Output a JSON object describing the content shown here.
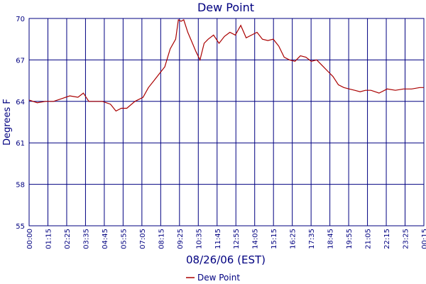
{
  "chart_data": {
    "type": "line",
    "title": "Dew Point",
    "xlabel": "08/26/06 (EST)",
    "ylabel": "Degrees F",
    "ylim": [
      55,
      70
    ],
    "yticks": [
      55,
      58,
      61,
      64,
      67,
      70
    ],
    "xticks": [
      "00:00",
      "01:15",
      "02:25",
      "03:35",
      "04:45",
      "05:55",
      "07:05",
      "08:15",
      "09:25",
      "10:35",
      "11:45",
      "12:55",
      "14:05",
      "15:15",
      "16:25",
      "17:35",
      "18:45",
      "19:55",
      "21:05",
      "22:15",
      "23:25",
      "00:15"
    ],
    "grid": true,
    "legend": {
      "position": "bottom",
      "entries": [
        "Dew Point"
      ]
    },
    "series": [
      {
        "name": "Dew Point",
        "color": "#aa0000",
        "x": [
          "00:00",
          "00:30",
          "01:00",
          "01:30",
          "02:00",
          "02:30",
          "03:00",
          "03:20",
          "03:40",
          "04:00",
          "04:30",
          "05:00",
          "05:20",
          "05:40",
          "06:00",
          "06:30",
          "07:00",
          "07:20",
          "07:40",
          "08:00",
          "08:20",
          "08:40",
          "09:00",
          "09:10",
          "09:20",
          "09:30",
          "09:45",
          "10:00",
          "10:15",
          "10:30",
          "10:45",
          "11:00",
          "11:20",
          "11:40",
          "12:00",
          "12:20",
          "12:40",
          "13:00",
          "13:20",
          "13:40",
          "14:00",
          "14:20",
          "14:40",
          "15:00",
          "15:20",
          "15:40",
          "16:00",
          "16:20",
          "16:40",
          "17:00",
          "17:20",
          "17:40",
          "18:00",
          "18:20",
          "18:40",
          "19:00",
          "19:20",
          "19:40",
          "20:00",
          "20:20",
          "20:40",
          "21:00",
          "21:30",
          "22:00",
          "22:30",
          "23:00",
          "23:30",
          "00:00",
          "00:15"
        ],
        "values": [
          64.1,
          63.9,
          64.0,
          64.0,
          64.2,
          64.4,
          64.3,
          64.6,
          64.0,
          64.0,
          64.0,
          63.8,
          63.3,
          63.5,
          63.5,
          64.0,
          64.3,
          65.0,
          65.5,
          66.0,
          66.5,
          67.8,
          68.5,
          69.9,
          69.8,
          69.9,
          69.0,
          68.3,
          67.6,
          67.0,
          68.2,
          68.5,
          68.8,
          68.2,
          68.7,
          69.0,
          68.8,
          69.5,
          68.6,
          68.8,
          69.0,
          68.5,
          68.4,
          68.5,
          68.0,
          67.2,
          67.0,
          66.9,
          67.3,
          67.2,
          66.9,
          67.0,
          66.6,
          66.2,
          65.8,
          65.2,
          65.0,
          64.9,
          64.8,
          64.7,
          64.8,
          64.8,
          64.6,
          64.9,
          64.8,
          64.9,
          64.9,
          65.0,
          65.0
        ]
      }
    ]
  }
}
